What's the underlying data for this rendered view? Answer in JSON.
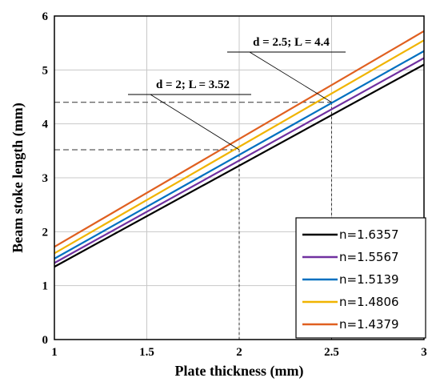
{
  "chart_data": {
    "type": "line",
    "title": "",
    "xlabel": "Plate thickness (mm)",
    "ylabel": "Beam stoke length (mm)",
    "xlim": [
      1,
      3
    ],
    "ylim": [
      0,
      6
    ],
    "x_ticks": [
      "1",
      "1.5",
      "2",
      "2.5",
      "3"
    ],
    "y_ticks": [
      "0",
      "1",
      "2",
      "3",
      "4",
      "5",
      "6"
    ],
    "grid": true,
    "legend_position": "bottom-right",
    "x": [
      1,
      3
    ],
    "series": [
      {
        "name": "n=1.6357",
        "color": "#000000",
        "values": [
          1.35,
          5.1
        ]
      },
      {
        "name": "n=1.5567",
        "color": "#7030a0",
        "values": [
          1.42,
          5.22
        ]
      },
      {
        "name": "n=1.5139",
        "color": "#0070c0",
        "values": [
          1.5,
          5.35
        ]
      },
      {
        "name": "n=1.4806",
        "color": "#f0b400",
        "values": [
          1.6,
          5.55
        ]
      },
      {
        "name": "n=1.4379",
        "color": "#e06020",
        "values": [
          1.72,
          5.72
        ]
      }
    ],
    "annotations": [
      {
        "text": "d = 2; L = 3.52",
        "x": 2,
        "y": 3.52
      },
      {
        "text": "d = 2.5; L = 4.4",
        "x": 2.5,
        "y": 4.4
      }
    ]
  }
}
